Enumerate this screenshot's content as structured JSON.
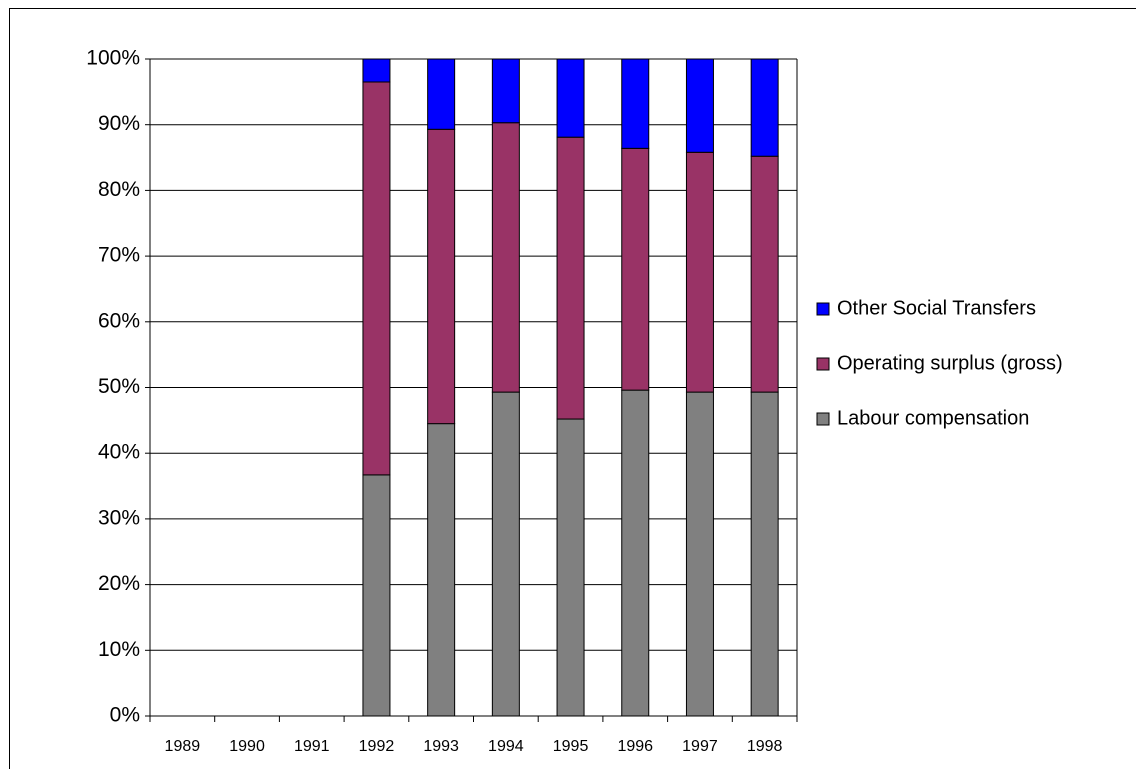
{
  "chart_data": {
    "type": "stacked_bar",
    "categories": [
      "1989",
      "1990",
      "1991",
      "1992",
      "1993",
      "1994",
      "1995",
      "1996",
      "1997",
      "1998"
    ],
    "series": [
      {
        "name": "Labour compensation",
        "color": "#808080",
        "values": [
          null,
          null,
          null,
          36.7,
          44.5,
          49.3,
          45.2,
          49.6,
          49.3,
          49.3
        ]
      },
      {
        "name": "Operating surplus (gross)",
        "color": "#993366",
        "values": [
          null,
          null,
          null,
          59.8,
          44.8,
          41.0,
          42.9,
          36.8,
          36.5,
          35.9
        ]
      },
      {
        "name": "Other Social Transfers",
        "color": "#0000ff",
        "values": [
          null,
          null,
          null,
          3.5,
          10.7,
          9.7,
          11.9,
          13.6,
          14.2,
          14.8
        ]
      }
    ],
    "ylim": [
      0,
      100
    ],
    "yticks": [
      {
        "value": 0,
        "label": "0%"
      },
      {
        "value": 10,
        "label": "10%"
      },
      {
        "value": 20,
        "label": "20%"
      },
      {
        "value": 30,
        "label": "30%"
      },
      {
        "value": 40,
        "label": "40%"
      },
      {
        "value": 50,
        "label": "50%"
      },
      {
        "value": 60,
        "label": "60%"
      },
      {
        "value": 70,
        "label": "70%"
      },
      {
        "value": 80,
        "label": "80%"
      },
      {
        "value": 90,
        "label": "90%"
      },
      {
        "value": 100,
        "label": "100%"
      }
    ],
    "grid": true,
    "legend": "right"
  }
}
